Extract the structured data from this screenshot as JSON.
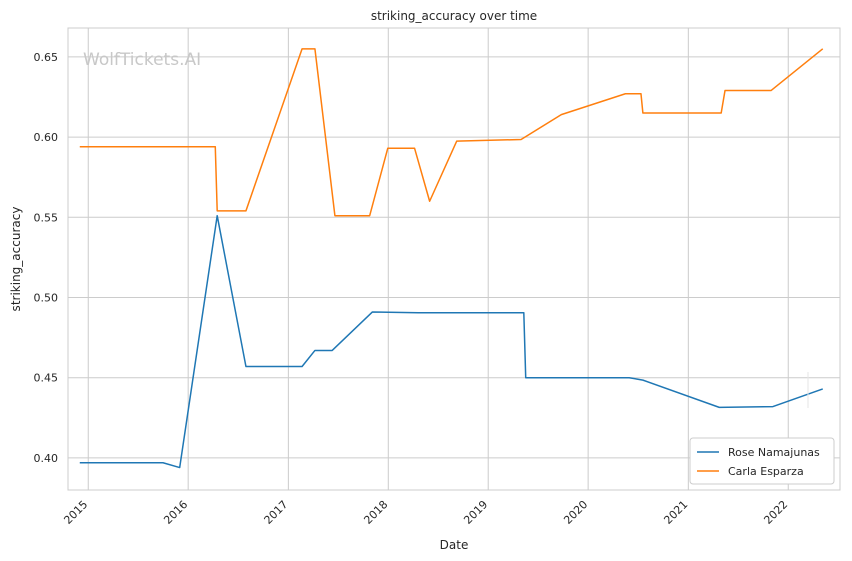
{
  "chart_data": {
    "type": "line",
    "title": "striking_accuracy over time",
    "xlabel": "Date",
    "ylabel": "striking_accuracy",
    "watermark": "WolfTickets.AI",
    "x_ticks": [
      "2015",
      "2016",
      "2017",
      "2018",
      "2019",
      "2020",
      "2021",
      "2022"
    ],
    "y_ticks": [
      "0.40",
      "0.45",
      "0.50",
      "0.55",
      "0.60",
      "0.65"
    ],
    "xlim": [
      "2014-10-19",
      "2022-07-09"
    ],
    "ylim": [
      0.38,
      0.668
    ],
    "grid": true,
    "legend_position": "lower-right",
    "series": [
      {
        "name": "Rose Namajunas",
        "color": "#1f77b4",
        "points": [
          [
            "2014-12-01",
            0.397
          ],
          [
            "2015-10-01",
            0.397
          ],
          [
            "2015-12-01",
            0.394
          ],
          [
            "2016-04-16",
            0.551
          ],
          [
            "2016-07-30",
            0.457
          ],
          [
            "2017-02-20",
            0.457
          ],
          [
            "2017-04-08",
            0.467
          ],
          [
            "2017-06-10",
            0.467
          ],
          [
            "2017-11-04",
            0.491
          ],
          [
            "2018-04-21",
            0.4905
          ],
          [
            "2019-05-11",
            0.4905
          ],
          [
            "2019-05-18",
            0.45
          ],
          [
            "2020-05-30",
            0.45
          ],
          [
            "2020-07-19",
            0.4485
          ],
          [
            "2021-04-24",
            0.4315
          ],
          [
            "2021-11-06",
            0.432
          ],
          [
            "2022-05-07",
            0.443
          ]
        ]
      },
      {
        "name": "Carla Esparza",
        "color": "#ff7f0e",
        "points": [
          [
            "2014-12-01",
            0.594
          ],
          [
            "2016-04-09",
            0.594
          ],
          [
            "2016-04-16",
            0.554
          ],
          [
            "2016-07-30",
            0.554
          ],
          [
            "2017-02-20",
            0.655
          ],
          [
            "2017-04-08",
            0.655
          ],
          [
            "2017-06-20",
            0.551
          ],
          [
            "2017-10-25",
            0.551
          ],
          [
            "2017-12-30",
            0.593
          ],
          [
            "2018-04-07",
            0.593
          ],
          [
            "2018-06-01",
            0.56
          ],
          [
            "2018-09-08",
            0.5975
          ],
          [
            "2019-05-01",
            0.5985
          ],
          [
            "2019-09-25",
            0.614
          ],
          [
            "2020-05-16",
            0.627
          ],
          [
            "2020-07-12",
            0.627
          ],
          [
            "2020-07-19",
            0.615
          ],
          [
            "2021-05-01",
            0.615
          ],
          [
            "2021-05-15",
            0.629
          ],
          [
            "2021-10-30",
            0.629
          ],
          [
            "2022-05-07",
            0.655
          ]
        ]
      }
    ]
  }
}
